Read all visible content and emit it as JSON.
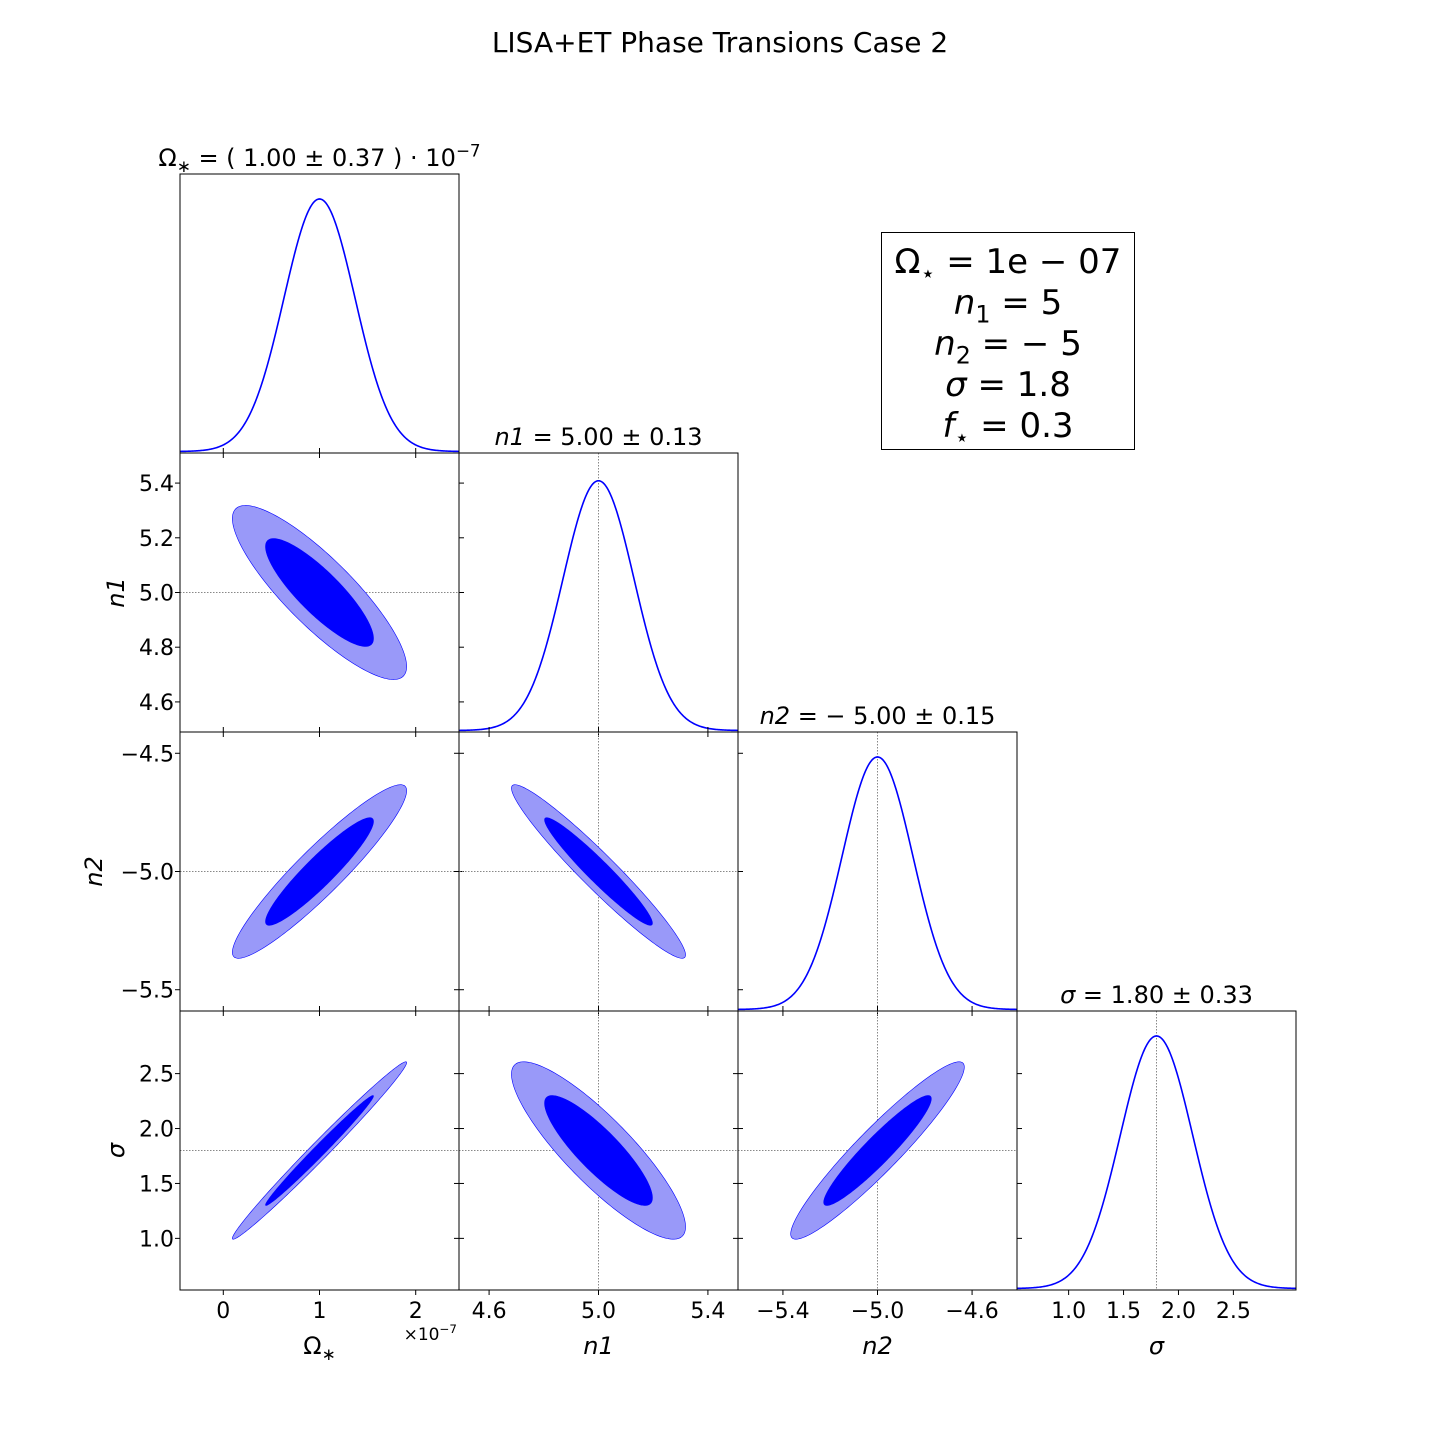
{
  "title": "LISA+ET Phase Transions Case 2",
  "legend_box": {
    "lines": [
      {
        "sym": "Ω",
        "sub": "⋆",
        "sub_is_star": true,
        "rest": " = 1e − 07"
      },
      {
        "sym": "n",
        "sub": "1",
        "rest": " = 5"
      },
      {
        "sym": "n",
        "sub": "2",
        "rest": " = − 5"
      },
      {
        "sym": "σ",
        "sub": "",
        "rest": " = 1.8"
      },
      {
        "sym": "f",
        "sub": "⋆",
        "sub_is_star": true,
        "rest": " = 0.3"
      }
    ]
  },
  "chart_data": {
    "type": "corner",
    "contour_colors": {
      "inner": "#0000ff",
      "outer": "#9999f9",
      "line": "#0000ff"
    },
    "levels": [
      "68%",
      "95%"
    ],
    "parameters": [
      {
        "key": "omega",
        "label_sym": "Ω",
        "label_sub": "∗",
        "label_italic": false,
        "mean": 1e-07,
        "sigma": 3.7e-08,
        "truth": 1e-07,
        "range": [
          -4.5e-08,
          2.45e-07
        ],
        "ticks": [
          0,
          1e-07,
          2e-07
        ],
        "tick_labels": [
          "0",
          "1",
          "2"
        ],
        "offset_label": "×10",
        "offset_exp": "−7",
        "title": {
          "lhs_sym": "Ω",
          "lhs_sub": "∗",
          "lhs_italic": false,
          "value": " = ( 1.00 ± 0.37 ) · 10",
          "exp": "−7"
        }
      },
      {
        "key": "n1",
        "label_sym": "n1",
        "label_sub": "",
        "label_italic": true,
        "mean": 5.0,
        "sigma": 0.13,
        "truth": 5.0,
        "range": [
          4.49,
          5.51
        ],
        "ticks": [
          4.6,
          4.8,
          5.0,
          5.2,
          5.4
        ],
        "tick_labels": [
          "4.6",
          "4.8",
          "5.0",
          "5.2",
          "5.4"
        ],
        "x_ticks_show": [
          4.6,
          5.0,
          5.4
        ],
        "x_tick_labels_show": [
          "4.6",
          "5.0",
          "5.4"
        ],
        "title": {
          "lhs_sym": "n1",
          "lhs_sub": "",
          "lhs_italic": true,
          "value": " = 5.00 ± 0.13",
          "exp": ""
        }
      },
      {
        "key": "n2",
        "label_sym": "n2",
        "label_sub": "",
        "label_italic": true,
        "mean": -5.0,
        "sigma": 0.15,
        "truth": -5.0,
        "range": [
          -5.59,
          -4.41
        ],
        "ticks": [
          -5.5,
          -5.0,
          -4.5
        ],
        "tick_labels": [
          "−5.5",
          "−5.0",
          "−4.5"
        ],
        "x_ticks_show": [
          -5.4,
          -5.0,
          -4.6
        ],
        "x_tick_labels_show": [
          "−5.4",
          "−5.0",
          "−4.6"
        ],
        "title": {
          "lhs_sym": "n2",
          "lhs_sub": "",
          "lhs_italic": true,
          "value": " = − 5.00 ± 0.15",
          "exp": ""
        }
      },
      {
        "key": "sigma",
        "label_sym": "σ",
        "label_sub": "",
        "label_italic": true,
        "mean": 1.8,
        "sigma": 0.33,
        "truth": 1.8,
        "range": [
          0.53,
          3.07
        ],
        "ticks": [
          1.0,
          1.5,
          2.0,
          2.5
        ],
        "tick_labels": [
          "1.0",
          "1.5",
          "2.0",
          "2.5"
        ],
        "title": {
          "lhs_sym": "σ",
          "lhs_sub": "",
          "lhs_italic": true,
          "value": " = 1.80 ± 0.33",
          "exp": ""
        }
      }
    ],
    "correlations": [
      {
        "row": 1,
        "col": 0,
        "rho": -0.85
      },
      {
        "row": 2,
        "col": 0,
        "rho": 0.93
      },
      {
        "row": 2,
        "col": 1,
        "rho": -0.96
      },
      {
        "row": 3,
        "col": 0,
        "rho": 0.99
      },
      {
        "row": 3,
        "col": 1,
        "rho": -0.86
      },
      {
        "row": 3,
        "col": 2,
        "rho": 0.94
      }
    ]
  }
}
